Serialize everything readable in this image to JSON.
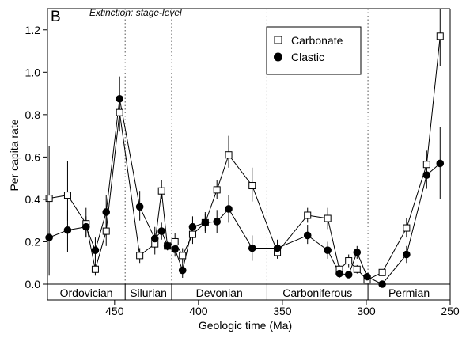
{
  "chart_data": {
    "type": "scatter",
    "panel_letter": "B",
    "subtitle": "Extinction: stage-level",
    "xlabel": "Geologic time (Ma)",
    "ylabel": "Per capita rate",
    "xlim": [
      490,
      250
    ],
    "ylim": [
      0,
      1.3
    ],
    "x_reversed": true,
    "x_ticks": [
      450,
      400,
      350,
      300,
      250
    ],
    "y_ticks": [
      0.0,
      0.2,
      0.4,
      0.6,
      0.8,
      1.0,
      1.2
    ],
    "y_tick_labels": [
      "0.0",
      "0.2",
      "0.4",
      "0.6",
      "0.8",
      "1.0",
      "1.2"
    ],
    "legend": {
      "position": "top-center",
      "entries": [
        "Carbonate",
        "Clastic"
      ]
    },
    "period_boundaries": [
      443.7,
      416.0,
      359.2,
      299.0
    ],
    "periods": [
      {
        "name": "Ordovician",
        "start": 490,
        "end": 443.7
      },
      {
        "name": "Silurian",
        "start": 443.7,
        "end": 416.0
      },
      {
        "name": "Devonian",
        "start": 416.0,
        "end": 359.2
      },
      {
        "name": "Carboniferous",
        "start": 359.2,
        "end": 299.0
      },
      {
        "name": "Permian",
        "start": 299.0,
        "end": 250
      }
    ],
    "series": [
      {
        "name": "Carbonate",
        "marker": "open-square",
        "points": [
          {
            "x": 489.0,
            "y": 0.405,
            "lo": 0.4,
            "hi": 0.41
          },
          {
            "x": 478.0,
            "y": 0.42,
            "lo": 0.3,
            "hi": 0.58
          },
          {
            "x": 467.0,
            "y": 0.285,
            "lo": 0.22,
            "hi": 0.36
          },
          {
            "x": 461.5,
            "y": 0.07,
            "lo": 0.04,
            "hi": 0.1
          },
          {
            "x": 455.0,
            "y": 0.25,
            "lo": 0.18,
            "hi": 0.33
          },
          {
            "x": 447.0,
            "y": 0.81,
            "lo": 0.72,
            "hi": 0.88
          },
          {
            "x": 435.0,
            "y": 0.135,
            "lo": 0.1,
            "hi": 0.17
          },
          {
            "x": 426.0,
            "y": 0.19,
            "lo": 0.14,
            "hi": 0.24
          },
          {
            "x": 422.0,
            "y": 0.44,
            "lo": 0.4,
            "hi": 0.49
          },
          {
            "x": 418.5,
            "y": 0.18,
            "lo": 0.16,
            "hi": 0.2
          },
          {
            "x": 414.0,
            "y": 0.2,
            "lo": 0.16,
            "hi": 0.24
          },
          {
            "x": 409.5,
            "y": 0.135,
            "lo": 0.1,
            "hi": 0.17
          },
          {
            "x": 403.5,
            "y": 0.235,
            "lo": 0.19,
            "hi": 0.28
          },
          {
            "x": 396.0,
            "y": 0.29,
            "lo": 0.25,
            "hi": 0.33
          },
          {
            "x": 389.0,
            "y": 0.445,
            "lo": 0.4,
            "hi": 0.49
          },
          {
            "x": 382.0,
            "y": 0.61,
            "lo": 0.55,
            "hi": 0.7
          },
          {
            "x": 368.0,
            "y": 0.465,
            "lo": 0.39,
            "hi": 0.55
          },
          {
            "x": 353.0,
            "y": 0.15,
            "lo": 0.12,
            "hi": 0.18
          },
          {
            "x": 335.0,
            "y": 0.325,
            "lo": 0.29,
            "hi": 0.36
          },
          {
            "x": 323.0,
            "y": 0.31,
            "lo": 0.26,
            "hi": 0.36
          },
          {
            "x": 316.0,
            "y": 0.07,
            "lo": 0.05,
            "hi": 0.09
          },
          {
            "x": 310.5,
            "y": 0.11,
            "lo": 0.08,
            "hi": 0.14
          },
          {
            "x": 305.5,
            "y": 0.07,
            "lo": 0.05,
            "hi": 0.09
          },
          {
            "x": 299.5,
            "y": 0.02,
            "lo": 0.01,
            "hi": 0.03
          },
          {
            "x": 290.5,
            "y": 0.055,
            "lo": 0.04,
            "hi": 0.07
          },
          {
            "x": 276.0,
            "y": 0.265,
            "lo": 0.22,
            "hi": 0.31
          },
          {
            "x": 264.0,
            "y": 0.565,
            "lo": 0.5,
            "hi": 0.63
          },
          {
            "x": 256.0,
            "y": 1.17,
            "lo": 1.03,
            "hi": 1.3
          }
        ]
      },
      {
        "name": "Clastic",
        "marker": "filled-circle",
        "points": [
          {
            "x": 489.0,
            "y": 0.22,
            "lo": 0.04,
            "hi": 0.65
          },
          {
            "x": 478.0,
            "y": 0.255,
            "lo": 0.15,
            "hi": 0.35
          },
          {
            "x": 467.0,
            "y": 0.27,
            "lo": 0.22,
            "hi": 0.32
          },
          {
            "x": 461.5,
            "y": 0.16,
            "lo": 0.1,
            "hi": 0.22
          },
          {
            "x": 455.0,
            "y": 0.34,
            "lo": 0.26,
            "hi": 0.42
          },
          {
            "x": 447.0,
            "y": 0.875,
            "lo": 0.8,
            "hi": 0.98
          },
          {
            "x": 435.0,
            "y": 0.365,
            "lo": 0.3,
            "hi": 0.44
          },
          {
            "x": 426.0,
            "y": 0.215,
            "lo": 0.17,
            "hi": 0.27
          },
          {
            "x": 422.0,
            "y": 0.25,
            "lo": 0.21,
            "hi": 0.29
          },
          {
            "x": 418.5,
            "y": 0.18,
            "lo": 0.16,
            "hi": 0.2
          },
          {
            "x": 414.0,
            "y": 0.165,
            "lo": 0.13,
            "hi": 0.2
          },
          {
            "x": 409.5,
            "y": 0.065,
            "lo": 0.03,
            "hi": 0.1
          },
          {
            "x": 403.5,
            "y": 0.27,
            "lo": 0.22,
            "hi": 0.32
          },
          {
            "x": 396.0,
            "y": 0.29,
            "lo": 0.24,
            "hi": 0.34
          },
          {
            "x": 389.0,
            "y": 0.295,
            "lo": 0.24,
            "hi": 0.35
          },
          {
            "x": 382.0,
            "y": 0.355,
            "lo": 0.29,
            "hi": 0.42
          },
          {
            "x": 368.0,
            "y": 0.17,
            "lo": 0.11,
            "hi": 0.23
          },
          {
            "x": 353.0,
            "y": 0.17,
            "lo": 0.13,
            "hi": 0.21
          },
          {
            "x": 335.0,
            "y": 0.23,
            "lo": 0.19,
            "hi": 0.28
          },
          {
            "x": 323.0,
            "y": 0.16,
            "lo": 0.12,
            "hi": 0.2
          },
          {
            "x": 316.0,
            "y": 0.05,
            "lo": 0.03,
            "hi": 0.07
          },
          {
            "x": 310.5,
            "y": 0.045,
            "lo": 0.03,
            "hi": 0.06
          },
          {
            "x": 305.5,
            "y": 0.15,
            "lo": 0.12,
            "hi": 0.18
          },
          {
            "x": 299.5,
            "y": 0.035,
            "lo": 0.02,
            "hi": 0.05
          },
          {
            "x": 290.5,
            "y": 0.0,
            "lo": 0.0,
            "hi": 0.01
          },
          {
            "x": 276.0,
            "y": 0.14,
            "lo": 0.1,
            "hi": 0.18
          },
          {
            "x": 264.0,
            "y": 0.515,
            "lo": 0.45,
            "hi": 0.59
          },
          {
            "x": 256.0,
            "y": 0.57,
            "lo": 0.4,
            "hi": 0.74
          }
        ]
      }
    ]
  }
}
